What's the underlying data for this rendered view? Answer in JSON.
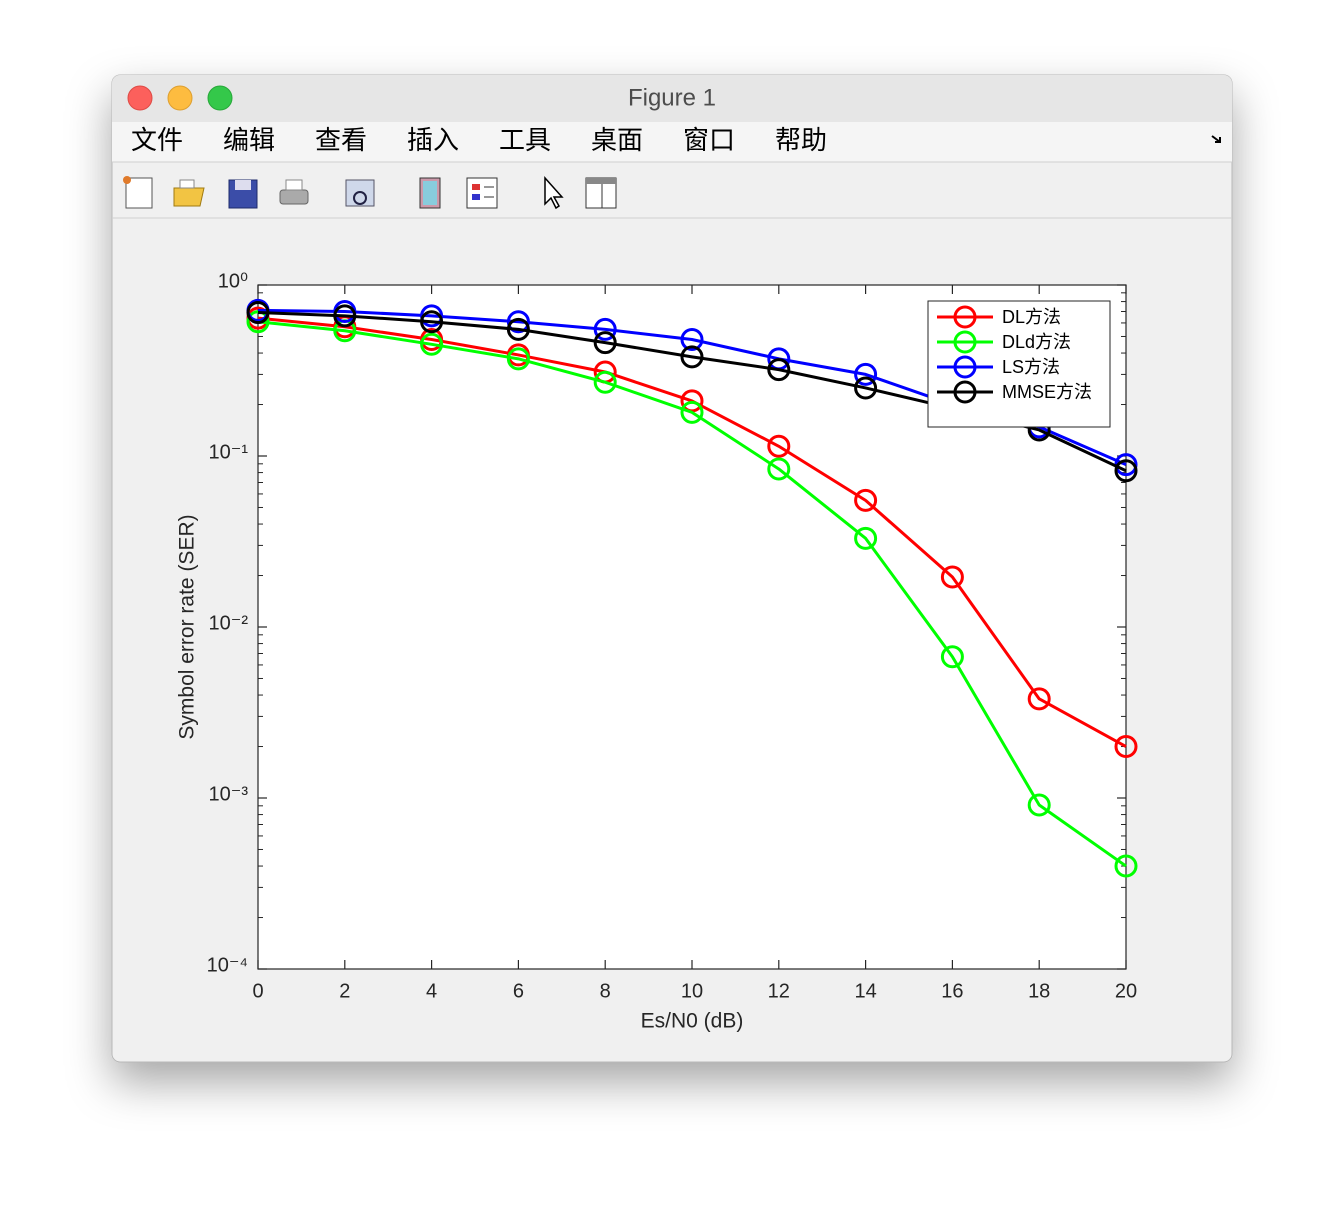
{
  "window": {
    "title": "Figure 1",
    "menu": [
      "文件",
      "编辑",
      "查看",
      "插入",
      "工具",
      "桌面",
      "窗口",
      "帮助"
    ]
  },
  "chart_data": {
    "type": "line",
    "xlabel": "Es/N0 (dB)",
    "ylabel": "Symbol error rate (SER)",
    "x": [
      0,
      2,
      4,
      6,
      8,
      10,
      12,
      14,
      16,
      18,
      20
    ],
    "xlim": [
      0,
      20
    ],
    "xticks": [
      0,
      2,
      4,
      6,
      8,
      10,
      12,
      14,
      16,
      18,
      20
    ],
    "ylim": [
      0.0001,
      1
    ],
    "yscale": "log",
    "yticks": [
      {
        "value": 0.0001,
        "label": "10⁻⁴"
      },
      {
        "value": 0.001,
        "label": "10⁻³"
      },
      {
        "value": 0.01,
        "label": "10⁻²"
      },
      {
        "value": 0.1,
        "label": "10⁻¹"
      },
      {
        "value": 1,
        "label": "10⁰"
      }
    ],
    "grid": false,
    "legend": "upper right",
    "marker": "o",
    "series": [
      {
        "name": "DL方法",
        "color": "#ff0000",
        "values": [
          0.64,
          0.57,
          0.48,
          0.39,
          0.31,
          0.21,
          0.114,
          0.055,
          0.0196,
          0.0038,
          0.002
        ]
      },
      {
        "name": "DLd方法",
        "color": "#00ff00",
        "values": [
          0.61,
          0.54,
          0.45,
          0.37,
          0.27,
          0.18,
          0.084,
          0.033,
          0.0067,
          0.00091,
          0.0004
        ]
      },
      {
        "name": "LS方法",
        "color": "#0000ff",
        "values": [
          0.71,
          0.7,
          0.66,
          0.61,
          0.55,
          0.48,
          0.37,
          0.3,
          0.2,
          0.148,
          0.089
        ]
      },
      {
        "name": "MMSE方法",
        "color": "#000000",
        "values": [
          0.69,
          0.66,
          0.61,
          0.55,
          0.46,
          0.38,
          0.32,
          0.25,
          0.19,
          0.142,
          0.082
        ]
      }
    ]
  }
}
